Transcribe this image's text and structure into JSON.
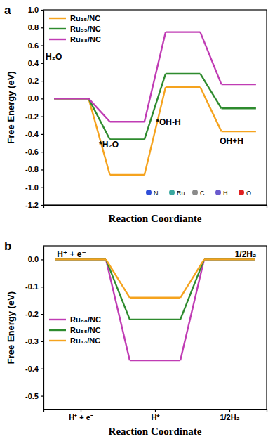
{
  "chart_data": [
    {
      "type": "step",
      "panel_label": "a",
      "x_label": "Reaction Coordiante",
      "y_label": "Free Energy (eV)",
      "categories": [
        "H₂O",
        "*H₂O",
        "*OH-H",
        "OH+H"
      ],
      "series": [
        {
          "name": "Ru₁₅/NC",
          "color": "#f5a31e",
          "values": [
            0,
            -0.86,
            0.13,
            -0.37
          ]
        },
        {
          "name": "Ru₅₅/NC",
          "color": "#2e8b2e",
          "values": [
            0,
            -0.46,
            0.28,
            -0.11
          ]
        },
        {
          "name": "Ru₈₈/NC",
          "color": "#c03cb4",
          "values": [
            0,
            -0.26,
            0.75,
            0.16
          ]
        }
      ],
      "ylim": [
        -1.2,
        1.0
      ],
      "yticks": [
        -1.2,
        {
          "value": -1.0,
          "label": "-1.0"
        },
        -0.8,
        -0.6,
        -0.4,
        -0.2,
        {
          "value": 0,
          "label": "0.0"
        },
        0.2,
        0.4,
        0.6,
        0.8,
        {
          "value": 1.0,
          "label": "1.0"
        }
      ],
      "tick_labels": "y",
      "legend": "top-left",
      "atom_key": [
        {
          "label": "N",
          "color": "#2f4fd8"
        },
        {
          "label": "Ru",
          "color": "#3aa8a0"
        },
        {
          "label": "C",
          "color": "#8a8a8a"
        },
        {
          "label": "H",
          "color": "#6a5acd"
        },
        {
          "label": "O",
          "color": "#e02020"
        }
      ]
    },
    {
      "type": "step",
      "panel_label": "b",
      "x_label": "Reaction Coordinate",
      "y_label": "Free Energy (eV)",
      "categories": [
        "H⁺ + e⁻",
        "H*",
        "1/2H₂"
      ],
      "series": [
        {
          "name": "Ru₈₈/NC",
          "color": "#c03cb4",
          "values": [
            0,
            -0.37,
            0
          ]
        },
        {
          "name": "Ru₅₅/NC",
          "color": "#2e8b2e",
          "values": [
            0,
            -0.22,
            0
          ]
        },
        {
          "name": "Ru₁₃/NC",
          "color": "#f5a31e",
          "values": [
            0,
            -0.14,
            0
          ]
        }
      ],
      "ylim": [
        -0.55,
        0.05
      ],
      "yticks": [
        {
          "value": 0,
          "label": "0.0"
        },
        -0.1,
        -0.2,
        -0.3,
        -0.4,
        -0.5
      ],
      "legend": "center-left",
      "annotations": [
        "H⁺ + e⁻",
        "1/2H₂"
      ]
    }
  ]
}
